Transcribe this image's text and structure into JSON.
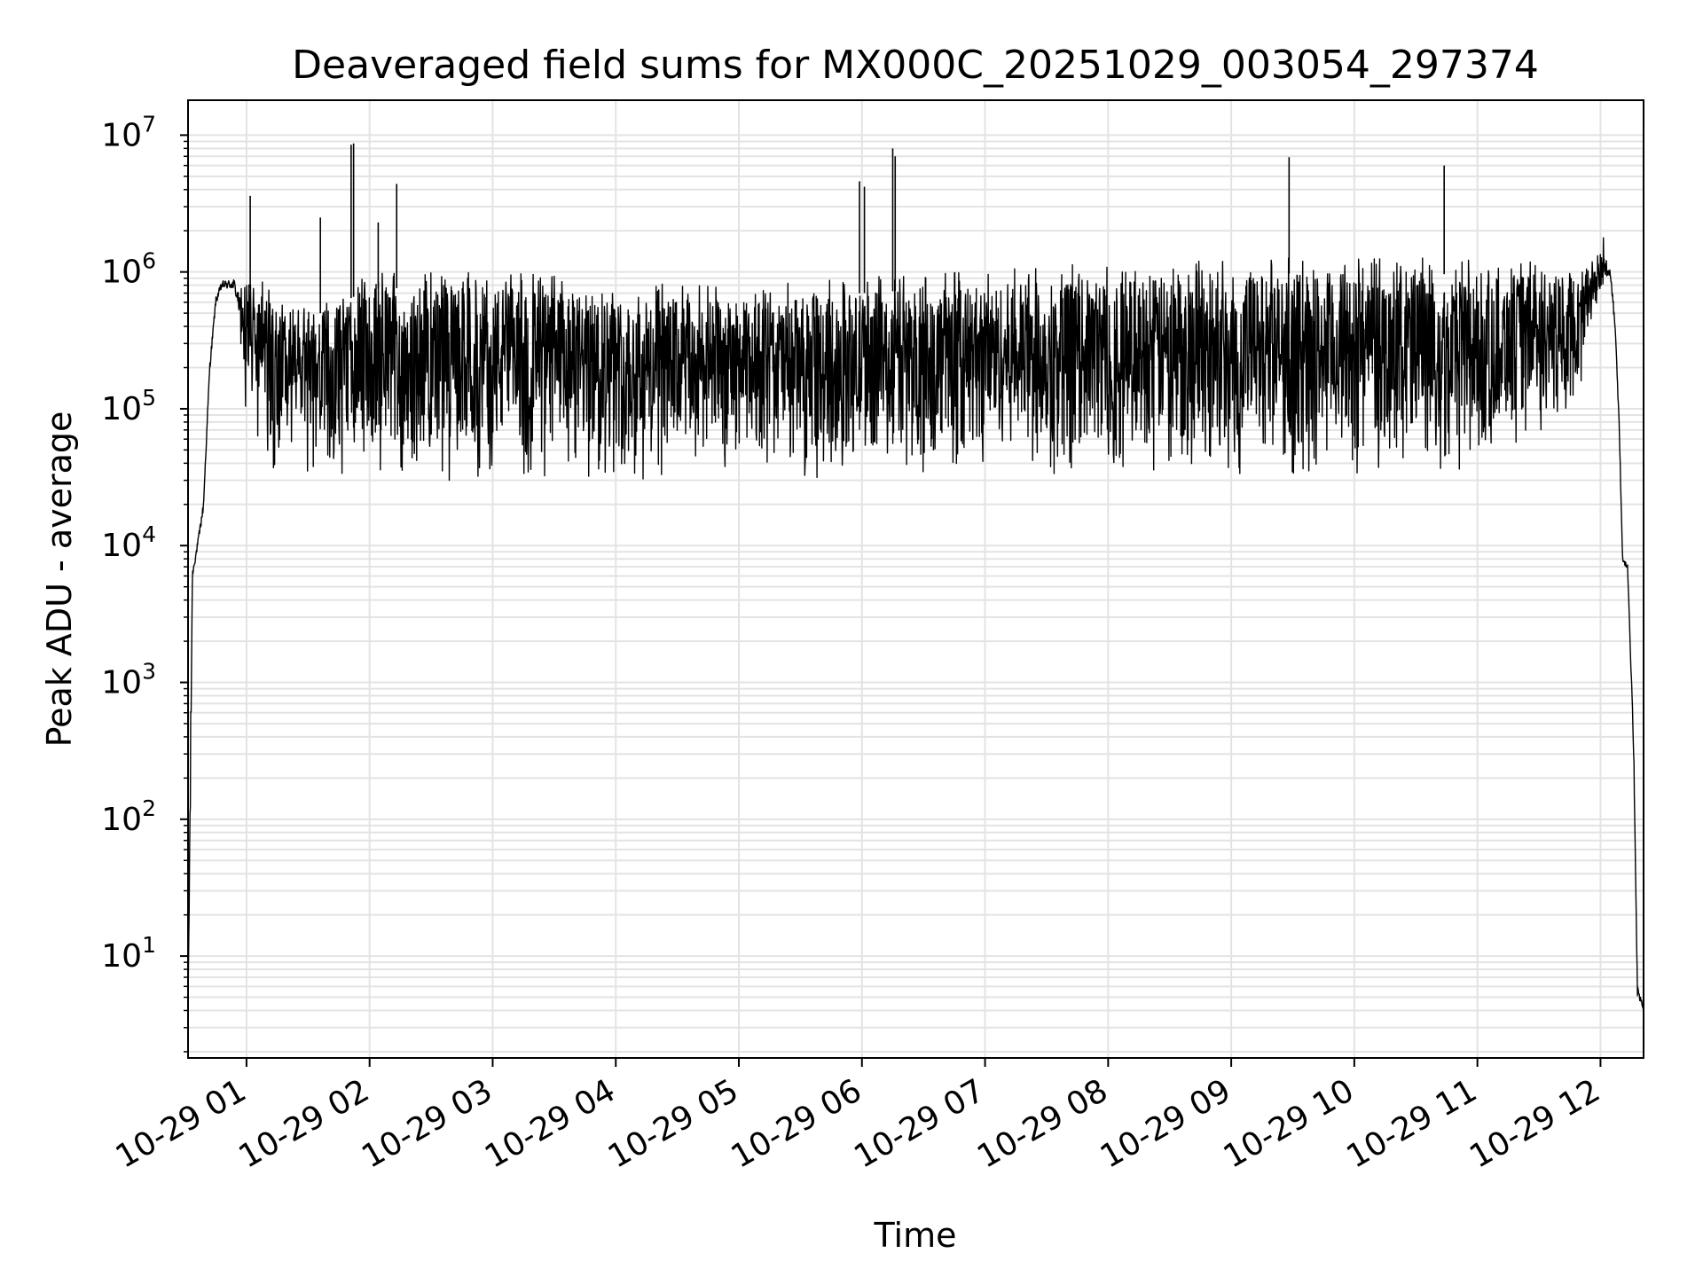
{
  "chart_data": {
    "type": "line",
    "title": "Deaveraged field sums for MX000C_20251029_003054_297374",
    "xlabel": "Time",
    "ylabel": "Peak ADU - average",
    "yscale": "log",
    "ylim": [
      1.8,
      18000000
    ],
    "xlim_hours": [
      0.525,
      12.35
    ],
    "grid": true,
    "legend": "none",
    "line_color": "#000000",
    "grid_color": "#e3e3e3",
    "x_ticks": [
      {
        "hour": 1,
        "label": "10-29 01"
      },
      {
        "hour": 2,
        "label": "10-29 02"
      },
      {
        "hour": 3,
        "label": "10-29 03"
      },
      {
        "hour": 4,
        "label": "10-29 04"
      },
      {
        "hour": 5,
        "label": "10-29 05"
      },
      {
        "hour": 6,
        "label": "10-29 06"
      },
      {
        "hour": 7,
        "label": "10-29 07"
      },
      {
        "hour": 8,
        "label": "10-29 08"
      },
      {
        "hour": 9,
        "label": "10-29 09"
      },
      {
        "hour": 10,
        "label": "10-29 10"
      },
      {
        "hour": 11,
        "label": "10-29 11"
      },
      {
        "hour": 12,
        "label": "10-29 12"
      }
    ],
    "y_ticks": [
      {
        "value": 10,
        "base": "10",
        "exp": "1"
      },
      {
        "value": 100,
        "base": "10",
        "exp": "2"
      },
      {
        "value": 1000,
        "base": "10",
        "exp": "3"
      },
      {
        "value": 10000,
        "base": "10",
        "exp": "4"
      },
      {
        "value": 100000,
        "base": "10",
        "exp": "5"
      },
      {
        "value": 1000000,
        "base": "10",
        "exp": "6"
      },
      {
        "value": 10000000,
        "base": "10",
        "exp": "7"
      }
    ],
    "envelope": [
      {
        "hour": 0.525,
        "low": 3.8,
        "high": 4.5
      },
      {
        "hour": 0.54,
        "low": 4,
        "high": 1500
      },
      {
        "hour": 0.56,
        "low": 5000,
        "high": 7500
      },
      {
        "hour": 0.6,
        "low": 8000,
        "high": 12000
      },
      {
        "hour": 0.65,
        "low": 15000,
        "high": 25000
      },
      {
        "hour": 0.7,
        "low": 150000,
        "high": 250000
      },
      {
        "hour": 0.75,
        "low": 500000,
        "high": 750000
      },
      {
        "hour": 0.8,
        "low": 650000,
        "high": 1000000
      },
      {
        "hour": 0.9,
        "low": 600000,
        "high": 1100000
      },
      {
        "hour": 1.0,
        "low": 150000,
        "high": 800000
      },
      {
        "hour": 1.2,
        "low": 60000,
        "high": 600000
      },
      {
        "hour": 1.6,
        "low": 50000,
        "high": 500000
      },
      {
        "hour": 2.0,
        "low": 50000,
        "high": 750000
      },
      {
        "hour": 3.0,
        "low": 50000,
        "high": 800000
      },
      {
        "hour": 4.0,
        "low": 50000,
        "high": 650000
      },
      {
        "hour": 5.0,
        "low": 50000,
        "high": 600000
      },
      {
        "hour": 6.0,
        "low": 50000,
        "high": 700000
      },
      {
        "hour": 7.0,
        "low": 55000,
        "high": 800000
      },
      {
        "hour": 8.0,
        "low": 55000,
        "high": 900000
      },
      {
        "hour": 9.0,
        "low": 55000,
        "high": 950000
      },
      {
        "hour": 10.0,
        "low": 55000,
        "high": 1000000
      },
      {
        "hour": 11.0,
        "low": 60000,
        "high": 950000
      },
      {
        "hour": 11.8,
        "low": 150000,
        "high": 950000
      },
      {
        "hour": 12.0,
        "low": 700000,
        "high": 1400000
      },
      {
        "hour": 12.08,
        "low": 800000,
        "high": 1300000
      },
      {
        "hour": 12.12,
        "low": 300000,
        "high": 500000
      },
      {
        "hour": 12.15,
        "low": 60000,
        "high": 120000
      },
      {
        "hour": 12.18,
        "low": 7000,
        "high": 9000
      },
      {
        "hour": 12.22,
        "low": 6000,
        "high": 8000
      },
      {
        "hour": 12.27,
        "low": 200,
        "high": 500
      },
      {
        "hour": 12.3,
        "low": 4,
        "high": 8
      },
      {
        "hour": 12.35,
        "low": 3.8,
        "high": 4.5
      }
    ],
    "spikes": [
      {
        "hour": 1.03,
        "value": 3600000
      },
      {
        "hour": 1.6,
        "value": 2500000
      },
      {
        "hour": 1.85,
        "value": 8500000
      },
      {
        "hour": 1.87,
        "value": 8700000
      },
      {
        "hour": 2.07,
        "value": 2300000
      },
      {
        "hour": 2.22,
        "value": 4400000
      },
      {
        "hour": 5.98,
        "value": 4600000
      },
      {
        "hour": 6.02,
        "value": 4200000
      },
      {
        "hour": 6.25,
        "value": 8000000
      },
      {
        "hour": 6.27,
        "value": 7000000
      },
      {
        "hour": 9.47,
        "value": 6900000
      },
      {
        "hour": 10.73,
        "value": 6000000
      }
    ]
  }
}
